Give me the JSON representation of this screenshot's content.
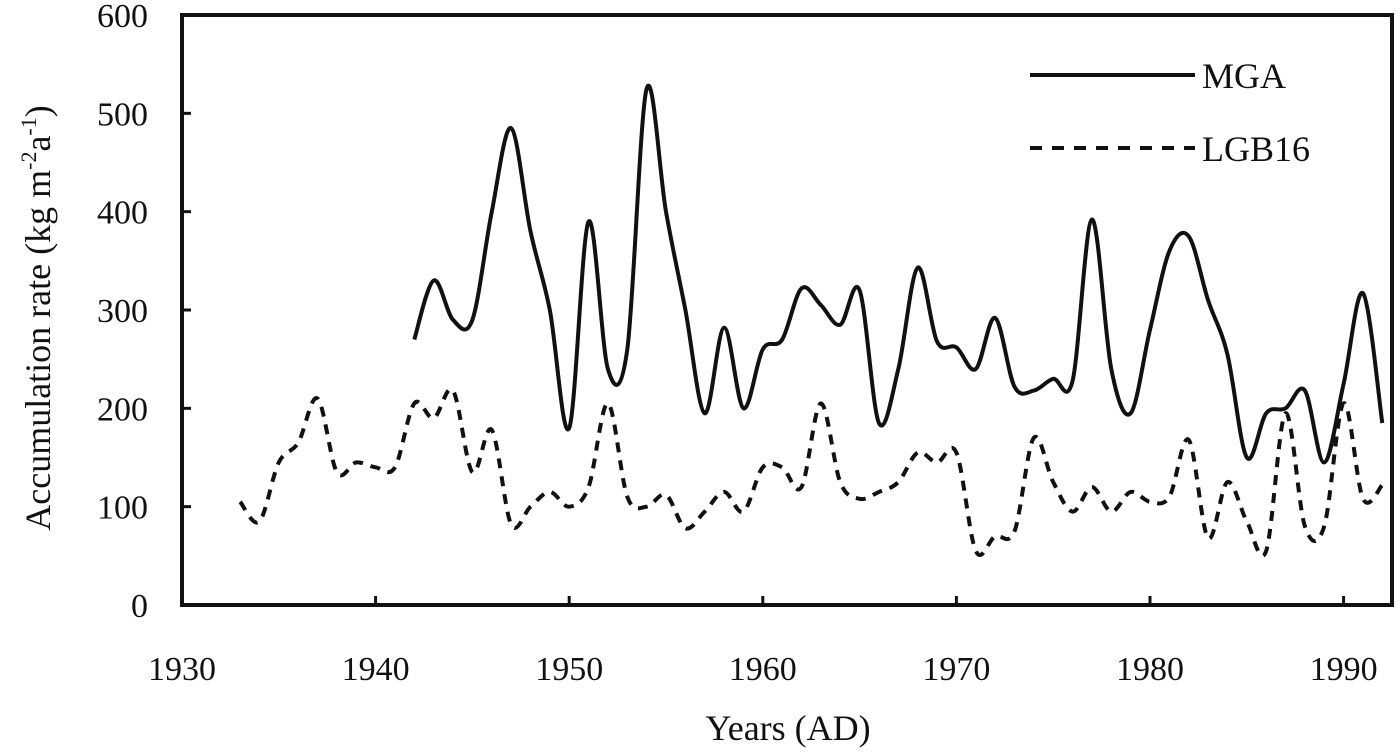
{
  "chart_data": {
    "type": "line",
    "title": "",
    "xlabel": "Years (AD)",
    "ylabel_parts": {
      "main": "Accumulation rate (kg m",
      "sup1": "-2",
      "mid": "a",
      "sup2": "-1",
      "end": ")"
    },
    "xlim": [
      1930,
      1992.5
    ],
    "ylim": [
      0,
      600
    ],
    "x_ticks": [
      "1930",
      "1940",
      "1950",
      "1960",
      "1970",
      "1980",
      "1990"
    ],
    "y_ticks": [
      "0",
      "100",
      "200",
      "300",
      "400",
      "500",
      "600"
    ],
    "grid": false,
    "legend_position": "top-right",
    "series": [
      {
        "name": "MGA",
        "style": "solid",
        "color": "#111111",
        "points": [
          [
            1942,
            270
          ],
          [
            1943,
            330
          ],
          [
            1944,
            290
          ],
          [
            1945,
            290
          ],
          [
            1946,
            400
          ],
          [
            1947,
            485
          ],
          [
            1948,
            380
          ],
          [
            1949,
            300
          ],
          [
            1950,
            180
          ],
          [
            1951,
            390
          ],
          [
            1952,
            240
          ],
          [
            1953,
            260
          ],
          [
            1954,
            525
          ],
          [
            1955,
            400
          ],
          [
            1956,
            300
          ],
          [
            1957,
            195
          ],
          [
            1958,
            282
          ],
          [
            1959,
            200
          ],
          [
            1960,
            260
          ],
          [
            1961,
            270
          ],
          [
            1962,
            322
          ],
          [
            1963,
            305
          ],
          [
            1964,
            285
          ],
          [
            1965,
            320
          ],
          [
            1966,
            185
          ],
          [
            1967,
            240
          ],
          [
            1968,
            343
          ],
          [
            1969,
            268
          ],
          [
            1970,
            262
          ],
          [
            1971,
            240
          ],
          [
            1972,
            292
          ],
          [
            1973,
            222
          ],
          [
            1974,
            218
          ],
          [
            1975,
            230
          ],
          [
            1976,
            228
          ],
          [
            1977,
            392
          ],
          [
            1978,
            240
          ],
          [
            1979,
            195
          ],
          [
            1980,
            280
          ],
          [
            1981,
            360
          ],
          [
            1982,
            375
          ],
          [
            1983,
            310
          ],
          [
            1984,
            255
          ],
          [
            1985,
            150
          ],
          [
            1986,
            195
          ],
          [
            1987,
            200
          ],
          [
            1988,
            218
          ],
          [
            1989,
            145
          ],
          [
            1990,
            225
          ],
          [
            1991,
            317
          ],
          [
            1992,
            185
          ]
        ]
      },
      {
        "name": "LGB16",
        "style": "dashed",
        "color": "#111111",
        "points": [
          [
            1933,
            105
          ],
          [
            1934,
            85
          ],
          [
            1935,
            145
          ],
          [
            1936,
            165
          ],
          [
            1937,
            210
          ],
          [
            1938,
            135
          ],
          [
            1939,
            145
          ],
          [
            1940,
            140
          ],
          [
            1941,
            140
          ],
          [
            1942,
            205
          ],
          [
            1943,
            190
          ],
          [
            1944,
            218
          ],
          [
            1945,
            135
          ],
          [
            1946,
            178
          ],
          [
            1947,
            82
          ],
          [
            1948,
            100
          ],
          [
            1949,
            115
          ],
          [
            1950,
            100
          ],
          [
            1951,
            120
          ],
          [
            1952,
            205
          ],
          [
            1953,
            110
          ],
          [
            1954,
            100
          ],
          [
            1955,
            112
          ],
          [
            1956,
            78
          ],
          [
            1957,
            95
          ],
          [
            1958,
            115
          ],
          [
            1959,
            95
          ],
          [
            1960,
            140
          ],
          [
            1961,
            140
          ],
          [
            1962,
            120
          ],
          [
            1963,
            205
          ],
          [
            1964,
            125
          ],
          [
            1965,
            108
          ],
          [
            1966,
            115
          ],
          [
            1967,
            125
          ],
          [
            1968,
            155
          ],
          [
            1969,
            145
          ],
          [
            1970,
            155
          ],
          [
            1971,
            55
          ],
          [
            1972,
            70
          ],
          [
            1973,
            75
          ],
          [
            1974,
            170
          ],
          [
            1975,
            125
          ],
          [
            1976,
            95
          ],
          [
            1977,
            120
          ],
          [
            1978,
            95
          ],
          [
            1979,
            115
          ],
          [
            1980,
            105
          ],
          [
            1981,
            110
          ],
          [
            1982,
            168
          ],
          [
            1983,
            68
          ],
          [
            1984,
            125
          ],
          [
            1985,
            85
          ],
          [
            1986,
            55
          ],
          [
            1987,
            195
          ],
          [
            1988,
            80
          ],
          [
            1989,
            80
          ],
          [
            1990,
            205
          ],
          [
            1991,
            108
          ],
          [
            1992,
            122
          ]
        ]
      }
    ]
  }
}
